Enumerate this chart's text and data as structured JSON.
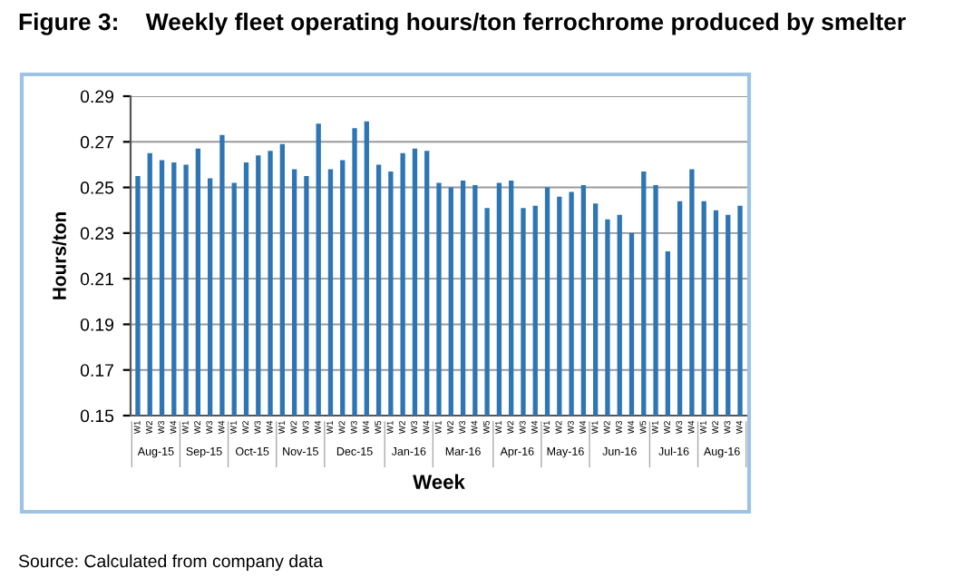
{
  "chart_data": {
    "type": "bar",
    "title": "Figure 3:    Weekly fleet operating hours/ton ferrochrome produced by smelter",
    "xlabel": "Week",
    "ylabel": "Hours/ton",
    "categories": [
      "W1",
      "W2",
      "W3",
      "W4",
      "W1",
      "W2",
      "W3",
      "W4",
      "W1",
      "W2",
      "W3",
      "W4",
      "W1",
      "W2",
      "W3",
      "W4",
      "W1",
      "W2",
      "W3",
      "W4",
      "W5",
      "W1",
      "W2",
      "W3",
      "W4",
      "W1",
      "W2",
      "W3",
      "W4",
      "W5",
      "W1",
      "W2",
      "W3",
      "W4",
      "W1",
      "W2",
      "W3",
      "W4",
      "W1",
      "W2",
      "W3",
      "W4",
      "W5",
      "W1",
      "W2",
      "W3",
      "W4",
      "W1",
      "W2",
      "W3",
      "W4"
    ],
    "values": [
      0.255,
      0.265,
      0.262,
      0.261,
      0.26,
      0.267,
      0.254,
      0.273,
      0.252,
      0.261,
      0.264,
      0.266,
      0.269,
      0.258,
      0.255,
      0.278,
      0.258,
      0.262,
      0.276,
      0.279,
      0.26,
      0.257,
      0.265,
      0.267,
      0.266,
      0.252,
      0.25,
      0.253,
      0.251,
      0.241,
      0.252,
      0.253,
      0.241,
      0.242,
      0.25,
      0.246,
      0.248,
      0.251,
      0.243,
      0.236,
      0.238,
      0.23,
      0.257,
      0.251,
      0.222,
      0.244,
      0.258,
      0.244,
      0.24,
      0.238,
      0.242
    ],
    "color": "#2e75b6",
    "ylim": [
      0.15,
      0.29
    ],
    "yticks": [
      {
        "value": 0.15,
        "label": "0.15"
      },
      {
        "value": 0.17,
        "label": "0.17"
      },
      {
        "value": 0.19,
        "label": "0.19"
      },
      {
        "value": 0.21,
        "label": "0.21"
      },
      {
        "value": 0.23,
        "label": "0.23"
      },
      {
        "value": 0.25,
        "label": "0.25"
      },
      {
        "value": 0.27,
        "label": "0.27"
      },
      {
        "value": 0.29,
        "label": "0.29"
      }
    ],
    "grid": "y",
    "annotations": [
      "Aug-15",
      "Sep-15",
      "Oct-15",
      "Nov-15",
      "Dec-15",
      "Jan-16",
      "Mar-16",
      "Apr-16",
      "May-16",
      "Jun-16",
      "Jul-16",
      "Aug-16",
      "Source: Calculated from company data"
    ]
  }
}
